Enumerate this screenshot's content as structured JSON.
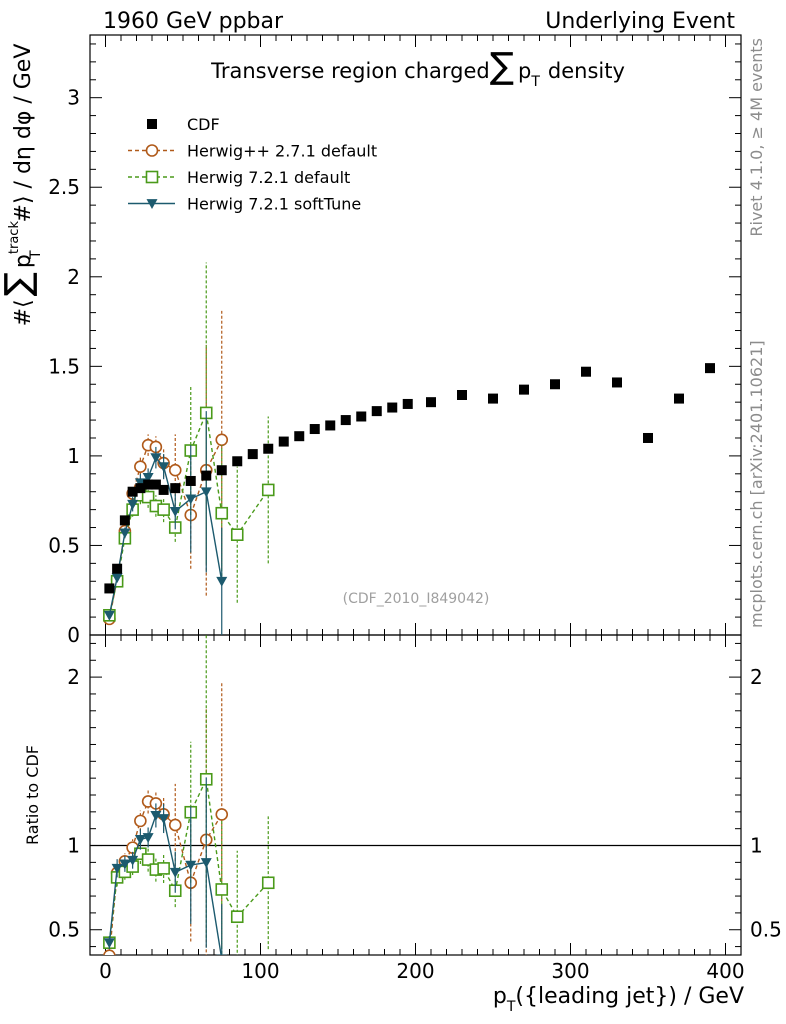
{
  "chart_data": {
    "type": "scatter",
    "header_left": "1960 GeV ppbar",
    "header_right": "Underlying Event",
    "title_pre": "Transverse region charged",
    "title_sum": "∑",
    "title_p": "p",
    "title_T": "T",
    "title_post": "density",
    "ylabel": "#⟨ ∑ p_T^track #⟩ / dη dφ / GeV",
    "ylabel_hash": "#",
    "ylabel_lang": "⟨",
    "ylabel_sum": "∑",
    "ylabel_p": "p",
    "ylabel_track": "track",
    "ylabel_T": "T",
    "ylabel_post": "#⟩ / dη dφ / GeV",
    "ratio_ylabel": "Ratio to CDF",
    "xlabel_p": "p",
    "xlabel_T": "T",
    "xlabel_post": "({leading jet}) / GeV",
    "side_label_1": "Rivet 4.1.0, ≥ 4M events",
    "side_label_2": "mcplots.cern.ch [arXiv:2401.10621]",
    "watermark": "(CDF_2010_I849042)",
    "xlim": [
      -10,
      410
    ],
    "ylim": [
      0,
      3.35
    ],
    "ratio_ylim": [
      0.35,
      2.25
    ],
    "x_ticks": [
      0,
      100,
      200,
      300,
      400
    ],
    "x_tick_labels": [
      "0",
      "100",
      "200",
      "300",
      "400"
    ],
    "y_ticks": [
      0,
      0.5,
      1,
      1.5,
      2,
      2.5,
      3
    ],
    "y_tick_labels": [
      "0",
      "0.5",
      "1",
      "1.5",
      "2",
      "2.5",
      "3"
    ],
    "ratio_y_ticks": [
      0.5,
      1,
      2
    ],
    "ratio_y_tick_labels": [
      "0.5",
      "1",
      "2"
    ],
    "series": [
      {
        "name": "CDF",
        "color": "#000000",
        "marker": "square-filled",
        "line": "none",
        "x": [
          2.5,
          7.5,
          12.5,
          17.5,
          22.5,
          27.5,
          32.5,
          37.5,
          45,
          55,
          65,
          75,
          85,
          95,
          105,
          115,
          125,
          135,
          145,
          155,
          165,
          175,
          185,
          195,
          210,
          230,
          250,
          270,
          290,
          310,
          330,
          350,
          370,
          390
        ],
        "y": [
          0.26,
          0.37,
          0.64,
          0.8,
          0.82,
          0.84,
          0.84,
          0.81,
          0.82,
          0.86,
          0.89,
          0.92,
          0.97,
          1.01,
          1.04,
          1.08,
          1.11,
          1.15,
          1.17,
          1.2,
          1.22,
          1.25,
          1.27,
          1.29,
          1.3,
          1.34,
          1.32,
          1.37,
          1.4,
          1.47,
          1.41,
          1.1,
          1.32,
          1.49
        ]
      },
      {
        "name": "Herwig++ 2.7.1 default",
        "color": "#b05a1a",
        "marker": "circle-open",
        "line": "dashed",
        "x": [
          2.5,
          7.5,
          12.5,
          17.5,
          22.5,
          27.5,
          32.5,
          37.5,
          45,
          55,
          65,
          75
        ],
        "y": [
          0.09,
          0.31,
          0.58,
          0.79,
          0.94,
          1.06,
          1.05,
          0.96,
          0.92,
          0.67,
          0.92,
          1.09
        ],
        "err": [
          0.01,
          0.02,
          0.03,
          0.04,
          0.05,
          0.06,
          0.06,
          0.08,
          0.2,
          0.3,
          0.7,
          0.72
        ]
      },
      {
        "name": "Herwig 7.2.1 default",
        "color": "#4a9a1a",
        "marker": "square-open",
        "line": "dashed",
        "x": [
          2.5,
          7.5,
          12.5,
          17.5,
          22.5,
          27.5,
          32.5,
          37.5,
          45,
          55,
          65,
          75,
          85,
          105
        ],
        "y": [
          0.11,
          0.3,
          0.54,
          0.7,
          0.78,
          0.77,
          0.72,
          0.7,
          0.6,
          1.03,
          1.24,
          0.68,
          0.56,
          0.81
        ],
        "err": [
          0.01,
          0.02,
          0.03,
          0.04,
          0.05,
          0.06,
          0.06,
          0.07,
          0.08,
          0.36,
          0.84,
          0.38,
          0.38,
          0.41
        ]
      },
      {
        "name": "Herwig 7.2.1 softTune",
        "color": "#1c5a6e",
        "marker": "triangle-down-filled",
        "line": "solid",
        "x": [
          2.5,
          7.5,
          12.5,
          17.5,
          22.5,
          27.5,
          32.5,
          37.5,
          45,
          55,
          65,
          75
        ],
        "y": [
          0.11,
          0.32,
          0.57,
          0.73,
          0.85,
          0.88,
          0.99,
          0.94,
          0.69,
          0.76,
          0.8,
          0.3
        ],
        "err": [
          0.01,
          0.02,
          0.03,
          0.04,
          0.05,
          0.05,
          0.06,
          0.07,
          0.1,
          0.3,
          0.45,
          0.3
        ]
      }
    ]
  }
}
